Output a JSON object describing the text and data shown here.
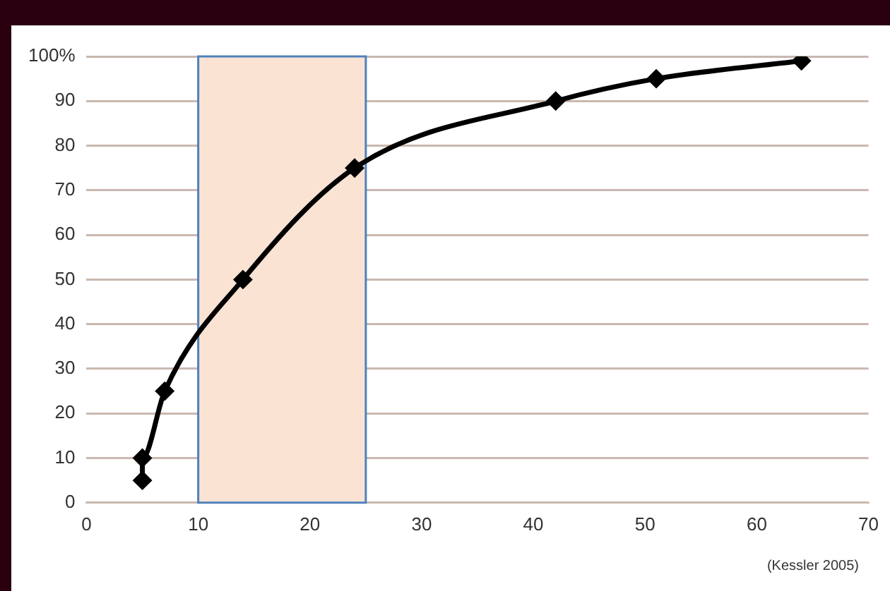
{
  "chart_data": {
    "type": "line",
    "x": [
      5,
      5,
      7,
      14,
      24,
      42,
      51,
      64
    ],
    "series": [
      {
        "color": "#000000",
        "values": [
          5,
          10,
          25,
          50,
          75,
          90,
          95,
          99
        ]
      }
    ],
    "xlim": [
      0,
      70
    ],
    "xticks": [
      0,
      10,
      20,
      30,
      40,
      50,
      60,
      70
    ],
    "ylim": [
      0,
      100
    ],
    "yticks": [
      0,
      10,
      20,
      30,
      40,
      50,
      60,
      70,
      80,
      90,
      {
        "value": 100,
        "label": "100%"
      }
    ],
    "grid": "y",
    "legend": false,
    "marker": "diamond",
    "line_style": "solid",
    "bands": [
      {
        "axis": "x",
        "from": 10,
        "to": 25,
        "color": "#fbe3d4"
      }
    ],
    "annotations": [
      "(Kessler 2005)"
    ]
  }
}
